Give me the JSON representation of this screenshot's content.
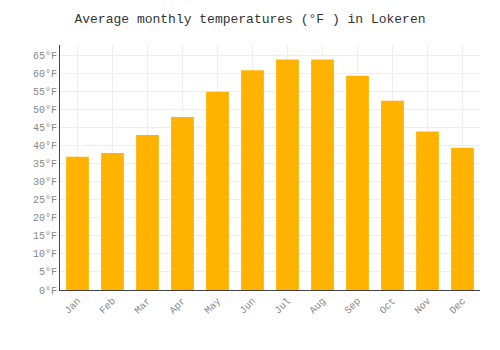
{
  "chart_data": {
    "type": "bar",
    "title": "Average monthly temperatures (°F ) in Lokeren",
    "categories": [
      "Jan",
      "Feb",
      "Mar",
      "Apr",
      "May",
      "Jun",
      "Jul",
      "Aug",
      "Sep",
      "Oct",
      "Nov",
      "Dec"
    ],
    "values": [
      37,
      38,
      43,
      48,
      55,
      61,
      64,
      64,
      59.5,
      52.5,
      44,
      39.5
    ],
    "color": "#FFB300",
    "ylim": [
      0,
      68
    ],
    "yticks": [
      {
        "value": 0,
        "label": "0°F"
      },
      {
        "value": 5,
        "label": "5°F"
      },
      {
        "value": 10,
        "label": "10°F"
      },
      {
        "value": 15,
        "label": "15°F"
      },
      {
        "value": 20,
        "label": "20°F"
      },
      {
        "value": 25,
        "label": "25°F"
      },
      {
        "value": 30,
        "label": "30°F"
      },
      {
        "value": 35,
        "label": "35°F"
      },
      {
        "value": 40,
        "label": "40°F"
      },
      {
        "value": 45,
        "label": "45°F"
      },
      {
        "value": 50,
        "label": "50°F"
      },
      {
        "value": 55,
        "label": "55°F"
      },
      {
        "value": 60,
        "label": "60°F"
      },
      {
        "value": 65,
        "label": "65°F"
      }
    ],
    "grid": true
  }
}
